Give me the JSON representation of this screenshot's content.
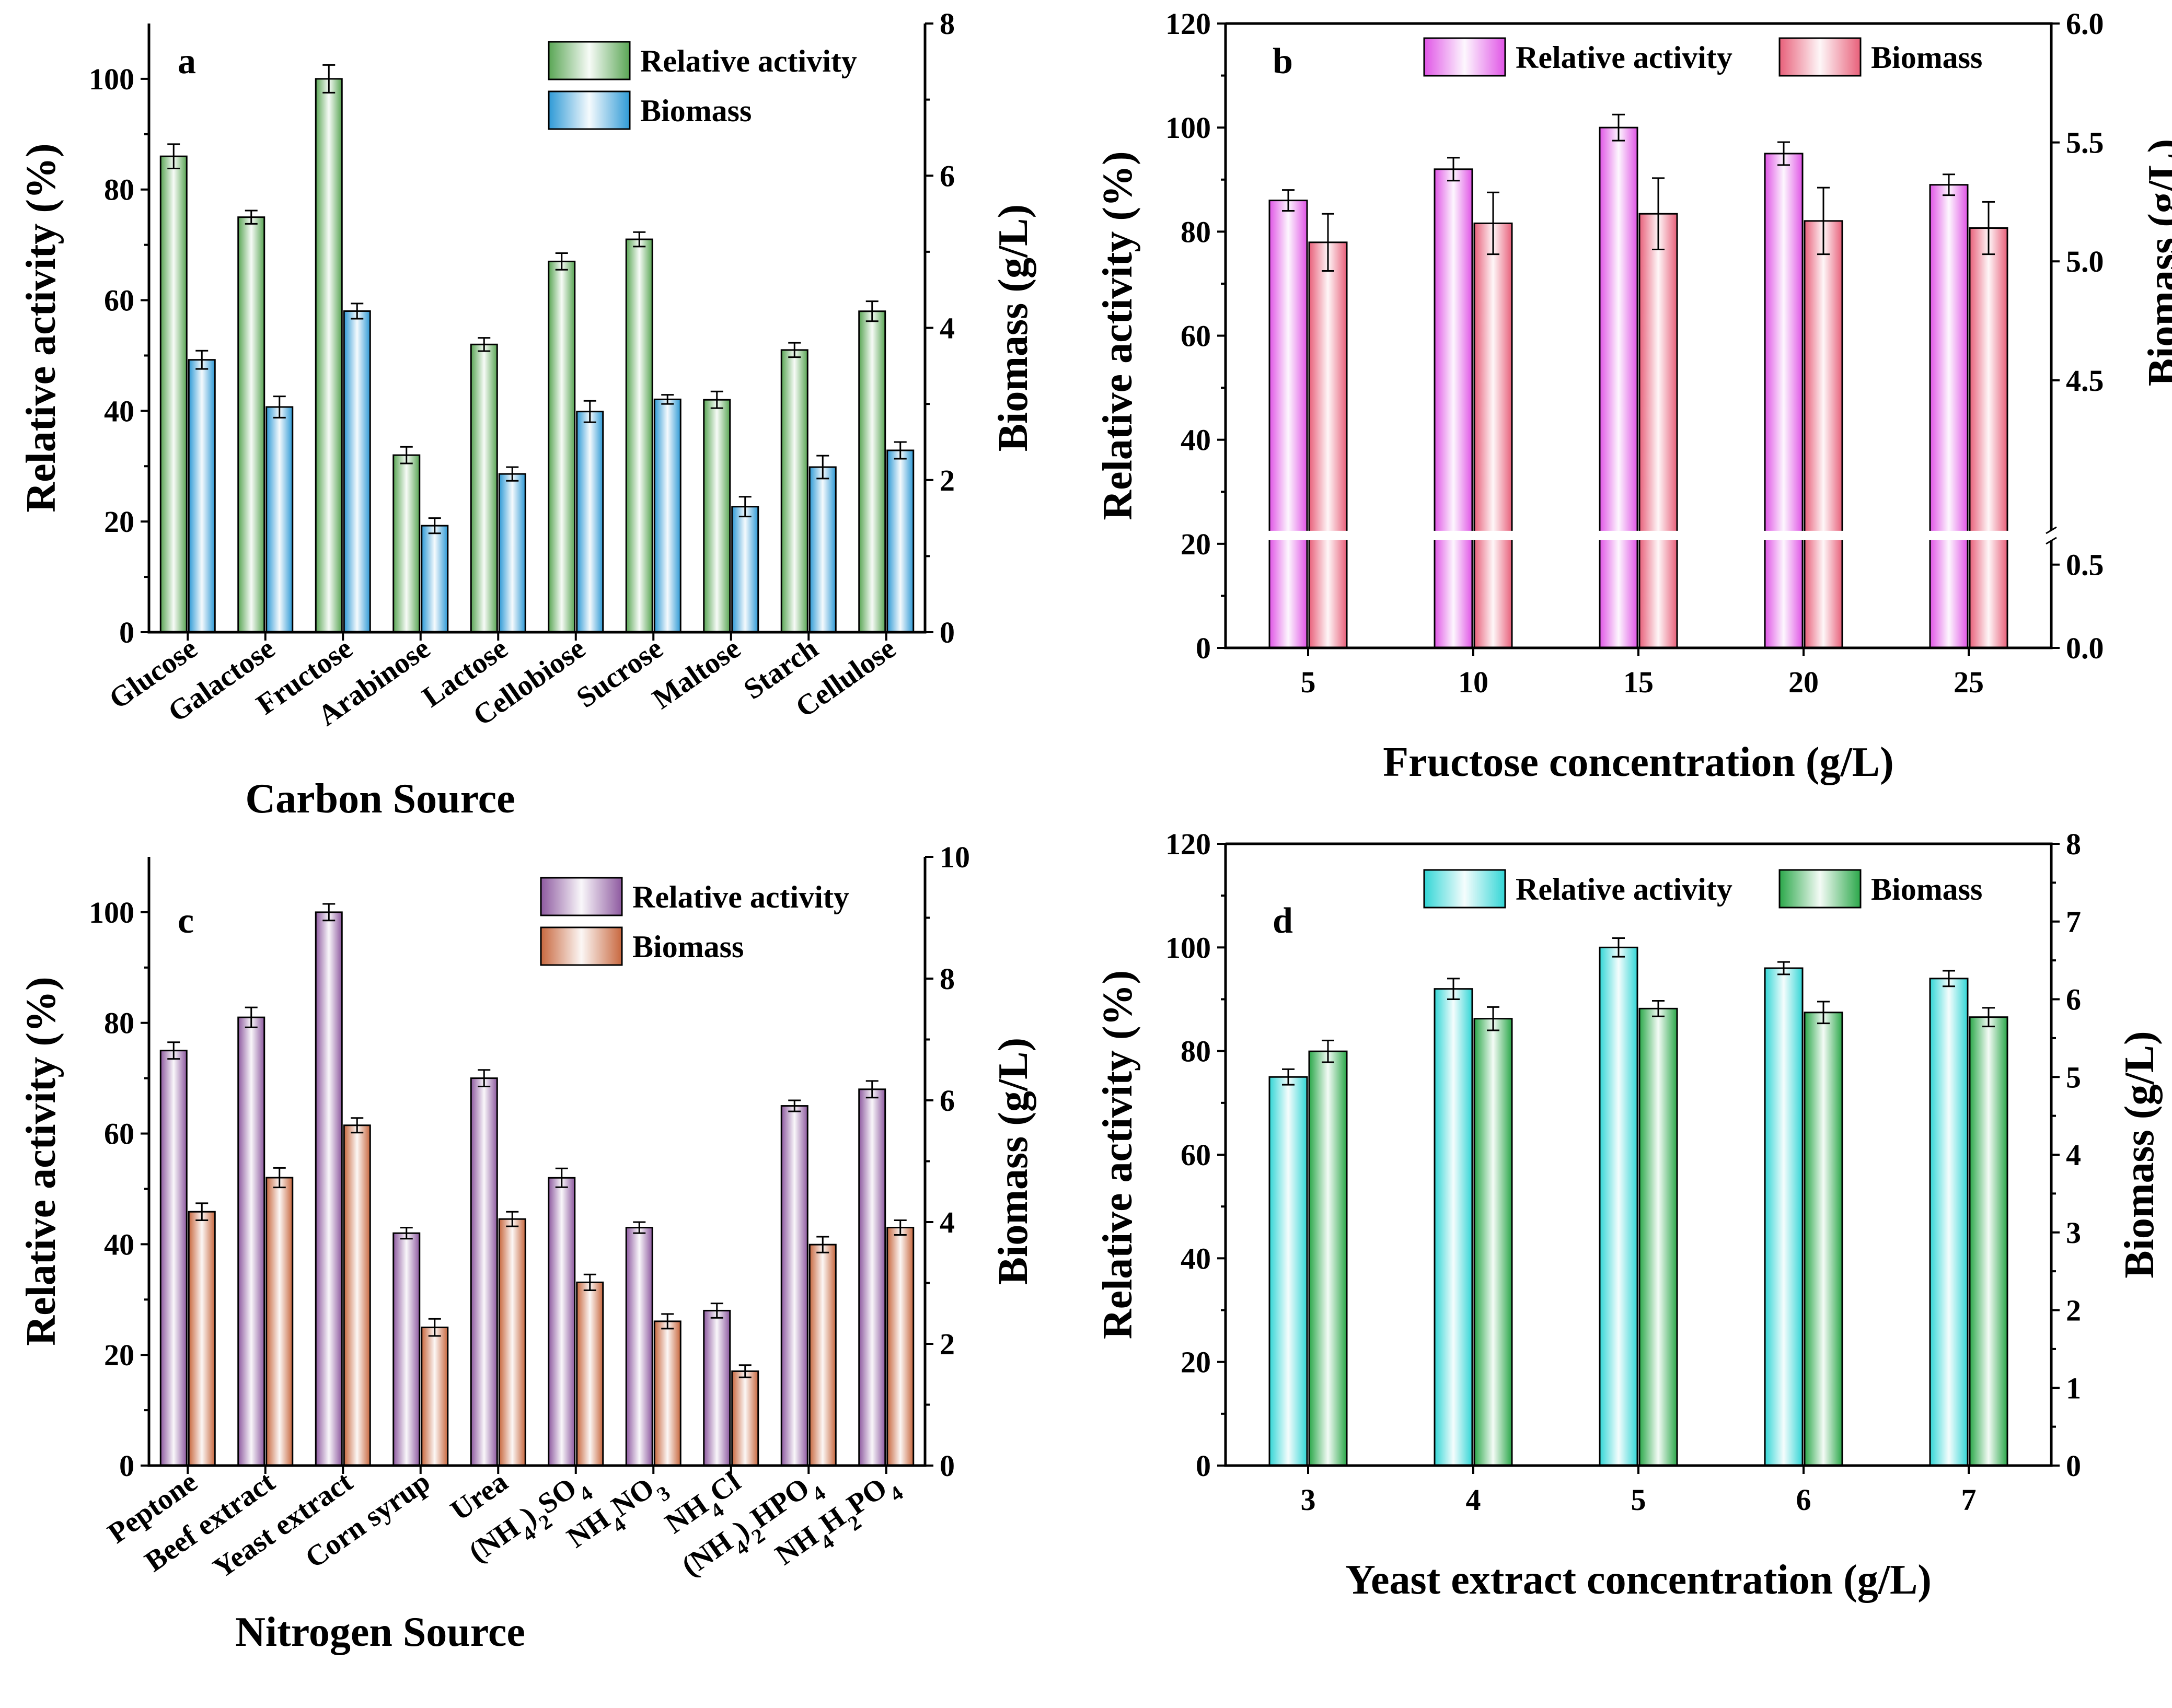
{
  "chart_data": [
    {
      "id": "a",
      "type": "bar",
      "panel_label": "a",
      "xlabel": "Carbon Source",
      "ylabel_left": "Relative activity (%)",
      "ylabel_right": "Biomass (g/L)",
      "categories": [
        "Glucose",
        "Galactose",
        "Fructose",
        "Arabinose",
        "Lactose",
        "Cellobiose",
        "Sucrose",
        "Maltose",
        "Starch",
        "Cellulose"
      ],
      "category_label_style": "rotated",
      "left_axis": {
        "min": 0,
        "max": 110,
        "ticks": [
          0,
          20,
          40,
          60,
          80,
          100
        ],
        "tick_labels": [
          "0",
          "20",
          "40",
          "60",
          "80",
          "100"
        ]
      },
      "right_axis": {
        "min": 0,
        "max": 8,
        "ticks": [
          0,
          2,
          4,
          6,
          8
        ],
        "tick_labels": [
          "0",
          "2",
          "4",
          "6",
          "8"
        ]
      },
      "series": [
        {
          "name": "Relative activity",
          "axis": "left",
          "color": "#5aa655",
          "values": [
            86,
            75,
            100,
            32,
            52,
            67,
            71,
            42,
            51,
            58
          ],
          "errors": [
            2.2,
            1.2,
            2.5,
            1.5,
            1.2,
            1.5,
            1.3,
            1.5,
            1.3,
            1.8
          ]
        },
        {
          "name": "Biomass",
          "axis": "right",
          "color": "#2f9ad6",
          "values": [
            3.58,
            2.96,
            4.22,
            1.4,
            2.08,
            2.9,
            3.06,
            1.65,
            2.17,
            2.39
          ],
          "errors": [
            0.12,
            0.14,
            0.1,
            0.1,
            0.09,
            0.14,
            0.06,
            0.13,
            0.15,
            0.11
          ]
        }
      ],
      "legend": [
        "Relative activity",
        "Biomass"
      ]
    },
    {
      "id": "b",
      "type": "bar",
      "panel_label": "b",
      "xlabel": "Fructose concentration (g/L)",
      "ylabel_left": "Relative activity (%)",
      "ylabel_right": "Biomass (g/L)",
      "categories": [
        "5",
        "10",
        "15",
        "20",
        "25"
      ],
      "category_label_style": "horizontal",
      "left_axis": {
        "min": 0,
        "max": 120,
        "ticks": [
          0,
          20,
          40,
          60,
          80,
          100,
          120
        ],
        "tick_labels": [
          "0",
          "20",
          "40",
          "60",
          "80",
          "100",
          "120"
        ]
      },
      "right_axis": {
        "broken": true,
        "lower_segment": {
          "min": 0,
          "max": 0.6,
          "ticks": [
            0,
            0.5
          ],
          "tick_labels": [
            "0.0",
            "0.5"
          ]
        },
        "upper_segment": {
          "min": 3.9,
          "max": 6.0,
          "ticks": [
            4.5,
            5.0,
            5.5,
            6.0
          ],
          "tick_labels": [
            "4.5",
            "5.0",
            "5.5",
            "6.0"
          ]
        }
      },
      "series": [
        {
          "name": "Relative activity",
          "axis": "left",
          "color": "#e055e6",
          "values": [
            86,
            92,
            100,
            95,
            89
          ],
          "errors": [
            2,
            2.2,
            2.5,
            2.2,
            2.0
          ]
        },
        {
          "name": "Biomass",
          "axis": "right",
          "color": "#e8607a",
          "values": [
            5.08,
            5.16,
            5.2,
            5.17,
            5.14
          ],
          "errors": [
            0.12,
            0.13,
            0.15,
            0.14,
            0.11
          ]
        }
      ],
      "legend": [
        "Relative activity",
        "Biomass"
      ]
    },
    {
      "id": "c",
      "type": "bar",
      "panel_label": "c",
      "xlabel": "Nitrogen Source",
      "ylabel_left": "Relative activity (%)",
      "ylabel_right": "Biomass (g/L)",
      "categories": [
        "Peptone",
        "Beef extract",
        "Yeast extract",
        "Corn syrup",
        "Urea",
        "(NH4)2SO4",
        "NH4NO3",
        "NH4Cl",
        "(NH4)2HPO4",
        "NH4H2PO4"
      ],
      "category_label_style": "rotated",
      "left_axis": {
        "min": 0,
        "max": 110,
        "ticks": [
          0,
          20,
          40,
          60,
          80,
          100
        ],
        "tick_labels": [
          "0",
          "20",
          "40",
          "60",
          "80",
          "100"
        ]
      },
      "right_axis": {
        "min": 0,
        "max": 10,
        "ticks": [
          0,
          2,
          4,
          6,
          8,
          10
        ],
        "tick_labels": [
          "0",
          "2",
          "4",
          "6",
          "8",
          "10"
        ]
      },
      "series": [
        {
          "name": "Relative activity",
          "axis": "left",
          "color": "#8e5aa0",
          "values": [
            75,
            81,
            100,
            42,
            70,
            52,
            43,
            28,
            65,
            68
          ],
          "errors": [
            1.5,
            1.8,
            1.5,
            1.0,
            1.5,
            1.7,
            1.0,
            1.3,
            1.0,
            1.5
          ]
        },
        {
          "name": "Biomass",
          "axis": "right",
          "color": "#c8683f",
          "values": [
            4.17,
            4.73,
            5.59,
            2.27,
            4.05,
            3.01,
            2.37,
            1.55,
            3.63,
            3.91
          ],
          "errors": [
            0.14,
            0.16,
            0.12,
            0.14,
            0.12,
            0.13,
            0.12,
            0.1,
            0.13,
            0.12
          ]
        }
      ],
      "legend": [
        "Relative activity",
        "Biomass"
      ]
    },
    {
      "id": "d",
      "type": "bar",
      "panel_label": "d",
      "xlabel": "Yeast extract concentration (g/L)",
      "ylabel_left": "Relative activity (%)",
      "ylabel_right": "Biomass (g/L)",
      "categories": [
        "3",
        "4",
        "5",
        "6",
        "7"
      ],
      "category_label_style": "horizontal",
      "left_axis": {
        "min": 0,
        "max": 120,
        "ticks": [
          0,
          20,
          40,
          60,
          80,
          100,
          120
        ],
        "tick_labels": [
          "0",
          "20",
          "40",
          "60",
          "80",
          "100",
          "120"
        ]
      },
      "right_axis": {
        "min": 0,
        "max": 8,
        "ticks": [
          0,
          1,
          2,
          3,
          4,
          5,
          6,
          7,
          8
        ],
        "tick_labels": [
          "0",
          "1",
          "2",
          "3",
          "4",
          "5",
          "6",
          "7",
          "8"
        ]
      },
      "series": [
        {
          "name": "Relative activity",
          "axis": "left",
          "color": "#33d6d6",
          "values": [
            75,
            92,
            100,
            96,
            94
          ],
          "errors": [
            1.5,
            2.0,
            1.8,
            1.2,
            1.5
          ]
        },
        {
          "name": "Biomass",
          "axis": "right",
          "color": "#2ba84a",
          "values": [
            5.33,
            5.75,
            5.88,
            5.83,
            5.77
          ],
          "errors": [
            0.14,
            0.15,
            0.1,
            0.14,
            0.12
          ]
        }
      ],
      "legend": [
        "Relative activity",
        "Biomass"
      ]
    }
  ]
}
